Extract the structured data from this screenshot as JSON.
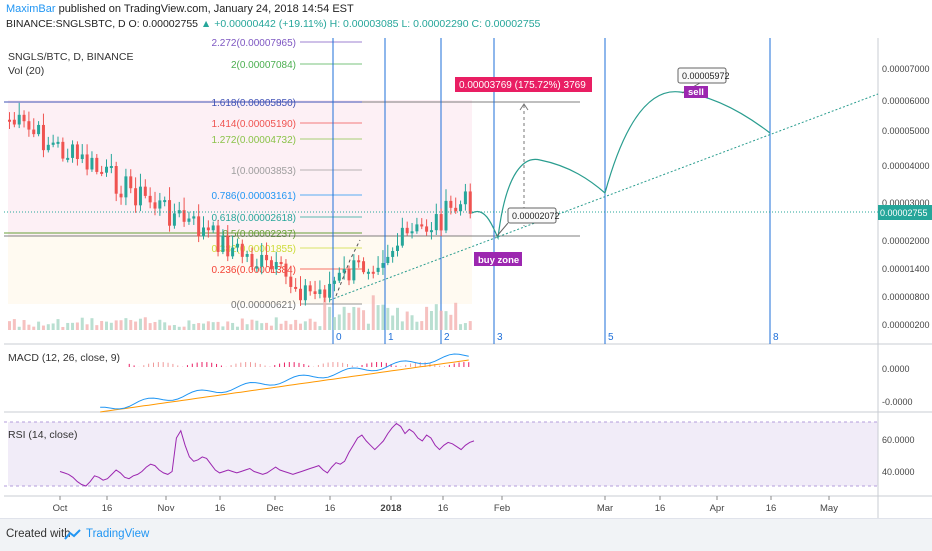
{
  "header": {
    "author": "MaximBar",
    "published": " published on TradingView.com, January 24, 2018 14:54 EST",
    "symbol_line": "BINANCE:SNGLSBTC, D  O: 0.00002755 ",
    "change": "▲ +0.00000442 (+19.11%)",
    "ohlc": " H: 0.00003085  L: 0.00002290  C: 0.00002755"
  },
  "legend": {
    "symbol": "SNGLS/BTC, D, BINANCE",
    "vol": "Vol (20)",
    "macd": "MACD (12, 26, close, 9)",
    "rsi": "RSI (14, close)"
  },
  "footer": {
    "created": "Created with",
    "brand": "TradingView"
  },
  "colors": {
    "up": "#26a69a",
    "down": "#ef5350",
    "trend": "#2a9d8f",
    "macd": "#2196f3",
    "signal": "#ff9800",
    "rsi": "#9c27b0",
    "annot_target": "#e91eaa",
    "annot_zone": "#9b27e3"
  },
  "chart_data": {
    "type": "candlestick",
    "title": "SNGLS/BTC, D, BINANCE",
    "x_ticks": [
      "Oct",
      "16",
      "Nov",
      "16",
      "Dec",
      "16",
      "2018",
      "16",
      "Feb",
      "Mar",
      "16",
      "Apr",
      "16",
      "May"
    ],
    "y_ticks": [
      "0.00007000",
      "0.00006000",
      "0.00005000",
      "0.00004000",
      "0.00003000",
      "0.00002000",
      "0.00001400",
      "0.00000800",
      "0.00000200"
    ],
    "last_price": "0.00002755",
    "fibonacci": [
      {
        "level": "2.272",
        "label": "2.272(0.00007965)"
      },
      {
        "level": "2",
        "label": "2(0.00007084)"
      },
      {
        "level": "1.618",
        "label": "1.618(0.00005850)"
      },
      {
        "level": "1.414",
        "label": "1.414(0.00005190)"
      },
      {
        "level": "1.272",
        "label": "1.272(0.00004732)"
      },
      {
        "level": "1",
        "label": "1(0.00003853)"
      },
      {
        "level": "0.786",
        "label": "0.786(0.00003161)"
      },
      {
        "level": "0.618",
        "label": "0.618(0.00002618)"
      },
      {
        "level": "0.5",
        "label": "0.5(0.00002237)"
      },
      {
        "level": "0.382",
        "label": "0.382(0.00001855)"
      },
      {
        "level": "0.236",
        "label": "0.236(0.00001384)"
      },
      {
        "level": "0",
        "label": "0(0.00000621)"
      }
    ],
    "annotations": {
      "target": "0.00003769 (175.72%) 3769",
      "box1": "0.00002072",
      "box2": "0.00005972",
      "sell": "sell",
      "buy_zone": "buy zone",
      "wave_labels": [
        "0",
        "1",
        "2",
        "3",
        "5",
        "8"
      ]
    },
    "macd_ticks": [
      "0.0000",
      "-0.0000"
    ],
    "rsi_ticks": [
      "60.0000",
      "40.0000"
    ],
    "rsi_values": [
      37,
      36,
      35,
      33,
      30,
      28,
      27,
      30,
      34,
      33,
      31,
      32,
      35,
      38,
      36,
      33,
      32,
      34,
      35,
      37,
      40,
      42,
      41,
      38,
      36,
      35,
      37,
      60,
      65,
      55,
      47,
      44,
      45,
      47,
      46,
      42,
      38,
      36,
      37,
      38,
      37,
      36,
      37,
      38,
      39,
      37,
      36,
      35,
      36,
      38,
      40,
      38,
      37,
      36,
      35,
      36,
      37,
      38,
      39,
      40,
      41,
      38,
      36,
      40,
      43,
      42,
      44,
      50,
      55,
      60,
      62,
      58,
      55,
      52,
      55,
      58,
      63,
      67,
      70,
      68,
      63,
      66,
      64,
      60,
      58,
      62,
      60,
      55,
      52,
      55,
      57,
      56,
      54,
      52,
      55,
      57,
      58
    ]
  }
}
